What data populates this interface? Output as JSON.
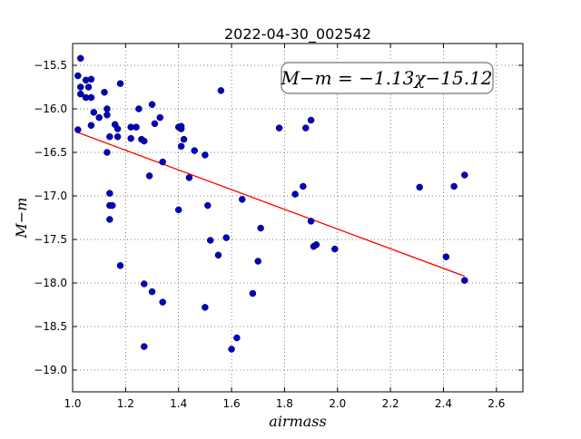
{
  "chart_data": {
    "type": "scatter",
    "title": "2022-04-30_002542",
    "xlabel": "airmass",
    "ylabel": "M−m",
    "xlim": [
      1.0,
      2.7
    ],
    "ylim": [
      -19.25,
      -15.25
    ],
    "y_inverted": true,
    "grid": true,
    "grid_style": "dotted",
    "xticks": [
      "1.0",
      "1.2",
      "1.4",
      "1.6",
      "1.8",
      "2.0",
      "2.2",
      "2.4",
      "2.6"
    ],
    "yticks": [
      "−15.5",
      "−16.0",
      "−16.5",
      "−17.0",
      "−17.5",
      "−18.0",
      "−18.5",
      "−19.0"
    ],
    "annotation": "M−m = −1.13χ−15.12",
    "fit": {
      "slope": -1.13,
      "intercept": -15.12,
      "x_range": [
        1.02,
        2.48
      ],
      "color": "#ff0000"
    },
    "marker_color": "#0000cc",
    "points": [
      [
        1.02,
        -15.62
      ],
      [
        1.03,
        -15.42
      ],
      [
        1.03,
        -15.75
      ],
      [
        1.03,
        -15.83
      ],
      [
        1.02,
        -16.24
      ],
      [
        1.05,
        -15.67
      ],
      [
        1.06,
        -15.75
      ],
      [
        1.07,
        -15.66
      ],
      [
        1.05,
        -15.87
      ],
      [
        1.07,
        -15.87
      ],
      [
        1.08,
        -16.04
      ],
      [
        1.1,
        -16.1
      ],
      [
        1.07,
        -16.19
      ],
      [
        1.12,
        -15.81
      ],
      [
        1.13,
        -16.0
      ],
      [
        1.13,
        -16.07
      ],
      [
        1.14,
        -16.32
      ],
      [
        1.13,
        -16.5
      ],
      [
        1.16,
        -16.18
      ],
      [
        1.17,
        -16.23
      ],
      [
        1.17,
        -16.32
      ],
      [
        1.18,
        -15.71
      ],
      [
        1.14,
        -16.97
      ],
      [
        1.14,
        -17.11
      ],
      [
        1.15,
        -17.11
      ],
      [
        1.14,
        -17.27
      ],
      [
        1.18,
        -17.8
      ],
      [
        1.22,
        -16.21
      ],
      [
        1.22,
        -16.34
      ],
      [
        1.24,
        -16.21
      ],
      [
        1.25,
        -16.0
      ],
      [
        1.26,
        -16.35
      ],
      [
        1.27,
        -16.37
      ],
      [
        1.3,
        -15.95
      ],
      [
        1.31,
        -16.17
      ],
      [
        1.33,
        -16.1
      ],
      [
        1.34,
        -16.61
      ],
      [
        1.29,
        -16.77
      ],
      [
        1.27,
        -18.01
      ],
      [
        1.3,
        -18.1
      ],
      [
        1.34,
        -18.22
      ],
      [
        1.27,
        -18.73
      ],
      [
        1.4,
        -16.21
      ],
      [
        1.41,
        -16.23
      ],
      [
        1.41,
        -16.2
      ],
      [
        1.42,
        -16.35
      ],
      [
        1.41,
        -16.43
      ],
      [
        1.4,
        -17.16
      ],
      [
        1.46,
        -16.48
      ],
      [
        1.44,
        -16.79
      ],
      [
        1.5,
        -16.53
      ],
      [
        1.51,
        -17.11
      ],
      [
        1.52,
        -17.51
      ],
      [
        1.56,
        -15.79
      ],
      [
        1.58,
        -17.48
      ],
      [
        1.55,
        -17.68
      ],
      [
        1.5,
        -18.28
      ],
      [
        1.62,
        -18.63
      ],
      [
        1.6,
        -18.76
      ],
      [
        1.64,
        -17.04
      ],
      [
        1.68,
        -18.12
      ],
      [
        1.7,
        -17.75
      ],
      [
        1.71,
        -17.37
      ],
      [
        1.78,
        -16.22
      ],
      [
        1.88,
        -16.22
      ],
      [
        1.9,
        -16.13
      ],
      [
        1.87,
        -16.89
      ],
      [
        1.84,
        -16.98
      ],
      [
        1.9,
        -17.29
      ],
      [
        1.91,
        -17.58
      ],
      [
        1.92,
        -17.56
      ],
      [
        1.99,
        -17.61
      ],
      [
        2.31,
        -16.9
      ],
      [
        2.41,
        -17.7
      ],
      [
        2.44,
        -16.89
      ],
      [
        2.48,
        -16.76
      ],
      [
        2.48,
        -17.97
      ]
    ]
  }
}
